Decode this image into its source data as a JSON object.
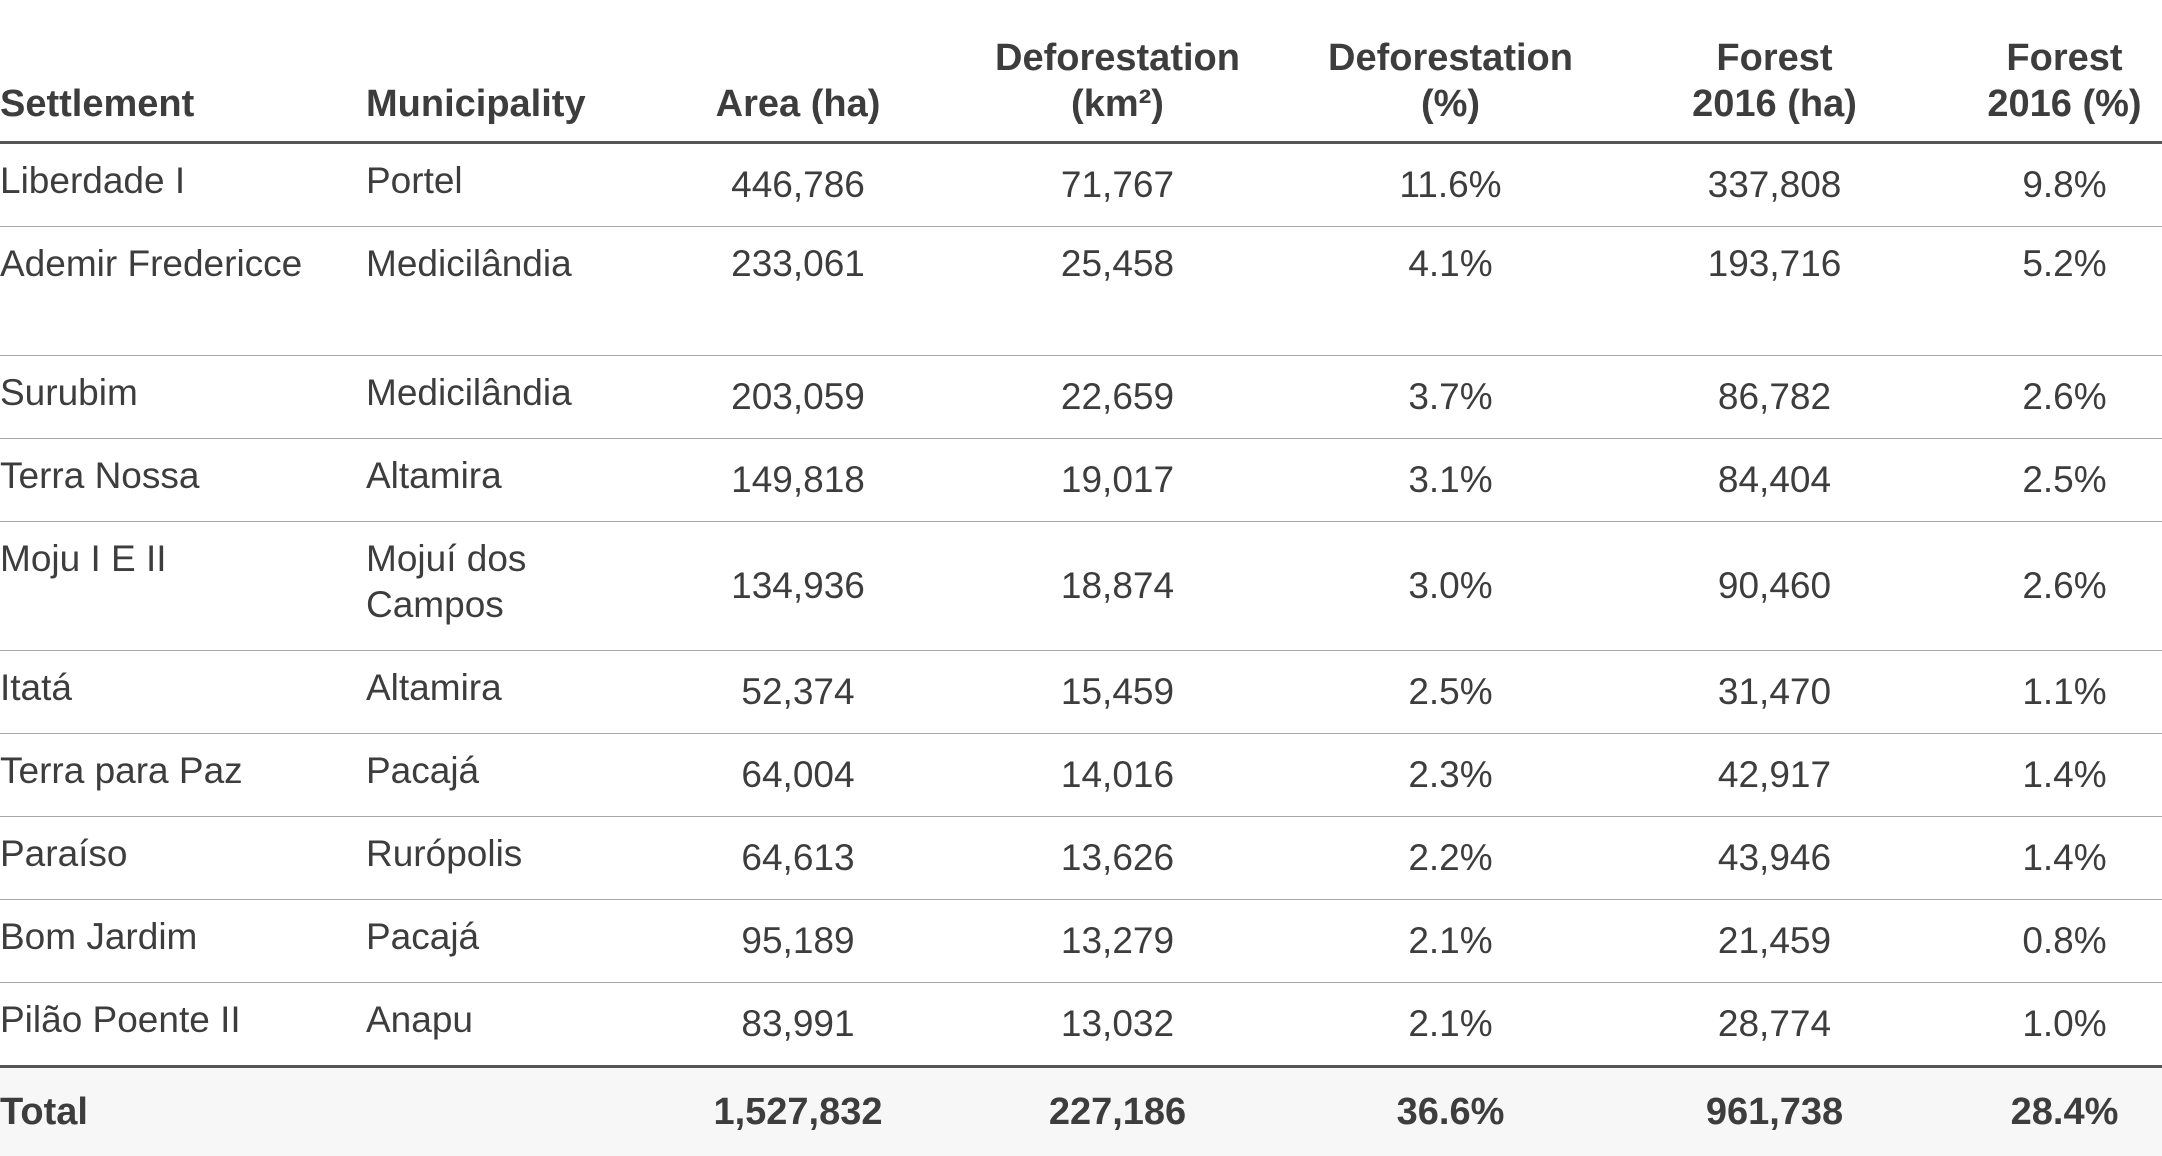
{
  "table": {
    "headers": {
      "settlement": "Settlement",
      "municipality": "Municipality",
      "area": "Area (ha)",
      "deforestation_km2_line1": "Deforestation",
      "deforestation_km2_line2": "(km²)",
      "deforestation_pct_line1": "Deforestation",
      "deforestation_pct_line2": "(%)",
      "forest_ha_line1": "Forest",
      "forest_ha_line2": "2016 (ha)",
      "forest_pct_line1": "Forest",
      "forest_pct_line2": "2016 (%)"
    },
    "rows": [
      {
        "settlement": "Liberdade I",
        "municipality": "Portel",
        "area": "446,786",
        "deforestation_km2": "71,767",
        "deforestation_pct": "11.6%",
        "forest_ha": "337,808",
        "forest_pct": "9.8%"
      },
      {
        "settlement": "Ademir Fredericce",
        "municipality": "Medicilândia",
        "area": "233,061",
        "deforestation_km2": "25,458",
        "deforestation_pct": "4.1%",
        "forest_ha": "193,716",
        "forest_pct": "5.2%"
      },
      {
        "settlement": "Surubim",
        "municipality": "Medicilândia",
        "area": "203,059",
        "deforestation_km2": "22,659",
        "deforestation_pct": "3.7%",
        "forest_ha": "86,782",
        "forest_pct": "2.6%"
      },
      {
        "settlement": "Terra Nossa",
        "municipality": "Altamira",
        "area": "149,818",
        "deforestation_km2": "19,017",
        "deforestation_pct": "3.1%",
        "forest_ha": "84,404",
        "forest_pct": "2.5%"
      },
      {
        "settlement": "Moju I E II",
        "municipality": "Mojuí dos Campos",
        "area": "134,936",
        "deforestation_km2": "18,874",
        "deforestation_pct": "3.0%",
        "forest_ha": "90,460",
        "forest_pct": "2.6%"
      },
      {
        "settlement": "Itatá",
        "municipality": "Altamira",
        "area": "52,374",
        "deforestation_km2": "15,459",
        "deforestation_pct": "2.5%",
        "forest_ha": "31,470",
        "forest_pct": "1.1%"
      },
      {
        "settlement": "Terra para Paz",
        "municipality": "Pacajá",
        "area": "64,004",
        "deforestation_km2": "14,016",
        "deforestation_pct": "2.3%",
        "forest_ha": "42,917",
        "forest_pct": "1.4%"
      },
      {
        "settlement": "Paraíso",
        "municipality": "Rurópolis",
        "area": "64,613",
        "deforestation_km2": "13,626",
        "deforestation_pct": "2.2%",
        "forest_ha": "43,946",
        "forest_pct": "1.4%"
      },
      {
        "settlement": "Bom Jardim",
        "municipality": "Pacajá",
        "area": "95,189",
        "deforestation_km2": "13,279",
        "deforestation_pct": "2.1%",
        "forest_ha": "21,459",
        "forest_pct": "0.8%"
      },
      {
        "settlement": "Pilão Poente II",
        "municipality": "Anapu",
        "area": "83,991",
        "deforestation_km2": "13,032",
        "deforestation_pct": "2.1%",
        "forest_ha": "28,774",
        "forest_pct": "1.0%"
      }
    ],
    "total": {
      "label": "Total",
      "area": "1,527,832",
      "deforestation_km2": "227,186",
      "deforestation_pct": "36.6%",
      "forest_ha": "961,738",
      "forest_pct": "28.4%"
    }
  }
}
